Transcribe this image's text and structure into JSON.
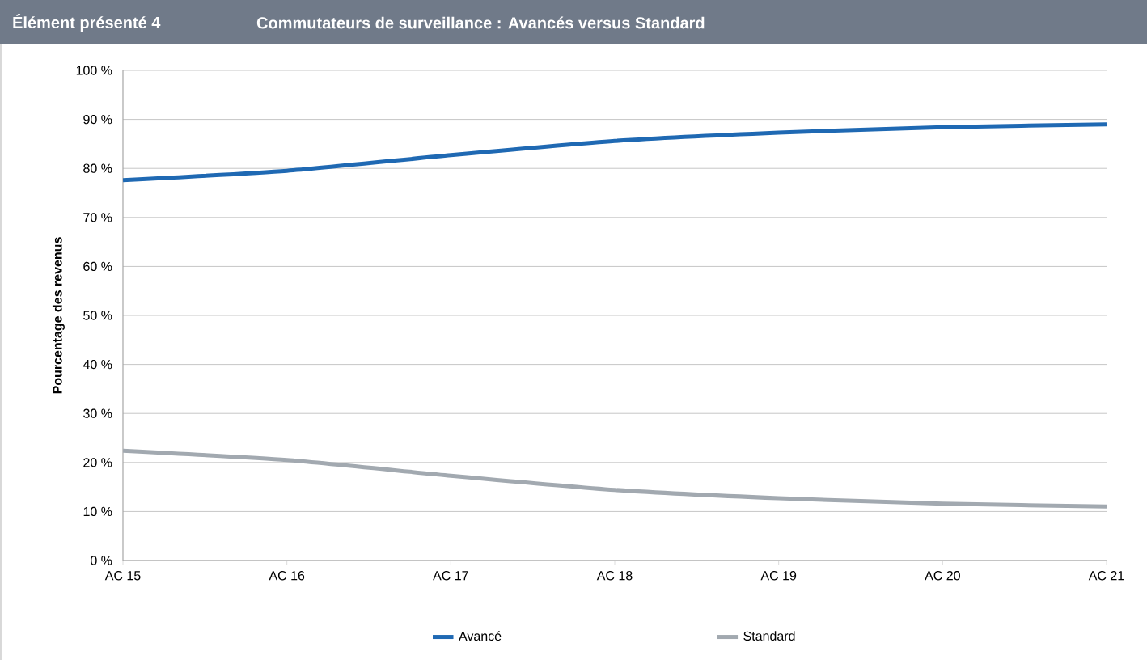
{
  "chart_data": {
    "type": "line",
    "title": "Élément présenté 4",
    "subtitle": "Commutateurs de surveillance : Avancés versus Standard",
    "ylabel": "Pourcentage des revenus",
    "categories": [
      "AC 15",
      "AC 16",
      "AC 17",
      "AC 18",
      "AC 19",
      "AC 20",
      "AC 21"
    ],
    "series": [
      {
        "name": "Avancé",
        "color": "#1f69b3",
        "values": [
          77.6,
          79.5,
          82.7,
          85.6,
          87.3,
          88.4,
          89.0
        ]
      },
      {
        "name": "Standard",
        "color": "#a2a9b0",
        "values": [
          22.4,
          20.5,
          17.3,
          14.4,
          12.7,
          11.6,
          11.0
        ]
      }
    ],
    "ylim": [
      0,
      100
    ],
    "yticks": [
      {
        "value": 0,
        "label": "0 %"
      },
      {
        "value": 10,
        "label": "10 %"
      },
      {
        "value": 20,
        "label": "20 %"
      },
      {
        "value": 30,
        "label": "30 %"
      },
      {
        "value": 40,
        "label": "40 %"
      },
      {
        "value": 50,
        "label": "50 %"
      },
      {
        "value": 60,
        "label": "60 %"
      },
      {
        "value": 70,
        "label": "70 %"
      },
      {
        "value": 80,
        "label": "80 %"
      },
      {
        "value": 90,
        "label": "90 %"
      },
      {
        "value": 100,
        "label": "100 %"
      }
    ],
    "grid": "y",
    "legend": "bottom",
    "marker": "none",
    "line_style": "solid"
  }
}
